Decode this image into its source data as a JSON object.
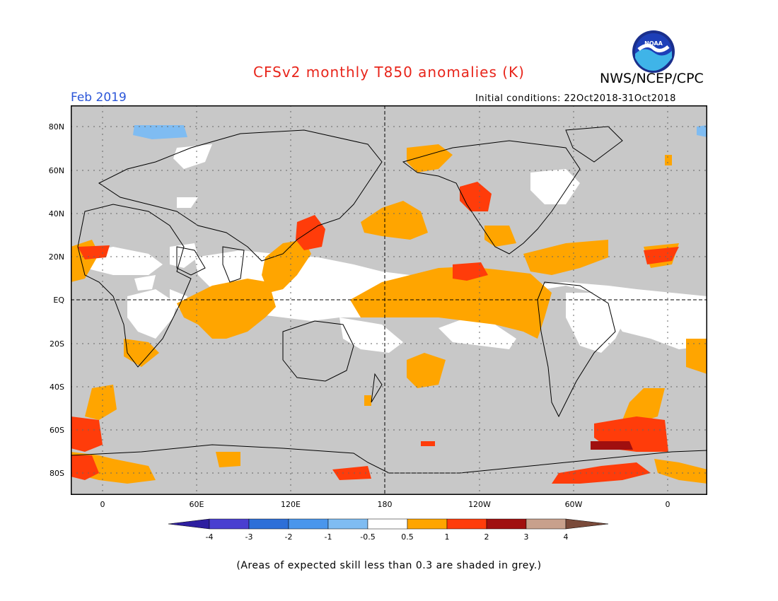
{
  "header": {
    "title": "CFSv2 monthly T850 anomalies (K)",
    "agency": "NWS/NCEP/CPC",
    "month": "Feb 2019",
    "initial_conditions": "Initial conditions: 22Oct2018-31Oct2018",
    "logo_text": "NOAA"
  },
  "map": {
    "lat_labels": [
      "80N",
      "60N",
      "40N",
      "20N",
      "EQ",
      "20S",
      "40S",
      "60S",
      "80S"
    ],
    "lon_labels": [
      "0",
      "60E",
      "120E",
      "180",
      "120W",
      "60W",
      "0"
    ]
  },
  "legend": {
    "ticks": [
      "-4",
      "-3",
      "-2",
      "-1",
      "-0.5",
      "0.5",
      "1",
      "2",
      "3",
      "4"
    ],
    "colors": [
      "#2e1fa0",
      "#4a3fd0",
      "#2d6fd8",
      "#4a96ec",
      "#7fbcf2",
      "#ffffff",
      "#ffa500",
      "#ff3c0a",
      "#a00f0f",
      "#c8a08c",
      "#7a4a3a"
    ]
  },
  "footnote": "(Areas of expected skill less than 0.3 are shaded in grey.)",
  "colors": {
    "grey_low_skill": "#c8c8c8",
    "neutral": "#ffffff",
    "warm1": "#ffa500",
    "warm2": "#ff3c0a",
    "warm3": "#a00f0f",
    "cool1": "#7fbcf2"
  }
}
